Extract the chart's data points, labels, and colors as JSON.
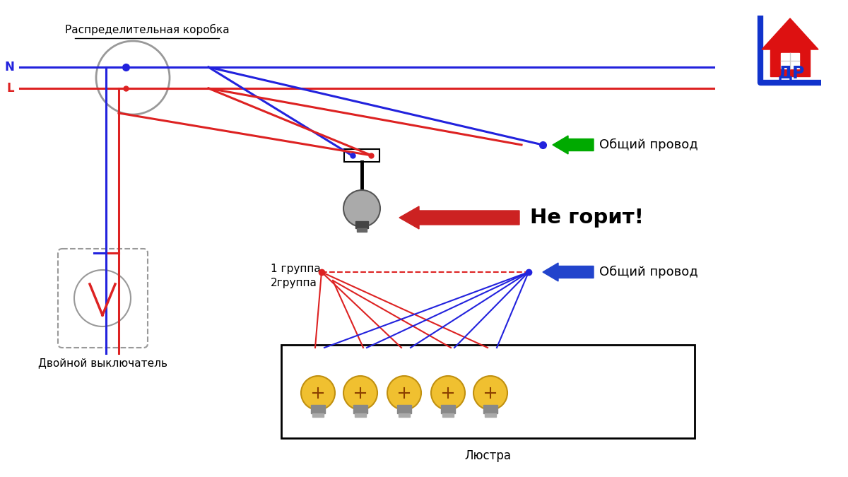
{
  "bg_color": "#ffffff",
  "wire_blue": "#2222dd",
  "wire_red": "#dd2222",
  "arrow_green": "#00aa00",
  "arrow_blue": "#2244cc",
  "arrow_red": "#cc2222",
  "text_color": "#000000",
  "gray_color": "#999999",
  "label_raspred": "Распределительная коробка",
  "label_N": "N",
  "label_L": "L",
  "label_obshiy1": "Общий провод",
  "label_obshiy2": "Общий провод",
  "label_ne_gorit": "Не горит!",
  "label_gruppa1": "1 группа",
  "label_gruppa2": "2группа",
  "label_lyustra": "Люстра",
  "label_dvoynoy": "Двойной выключатель",
  "logo_color_red": "#dd1111",
  "logo_color_blue": "#1133cc"
}
